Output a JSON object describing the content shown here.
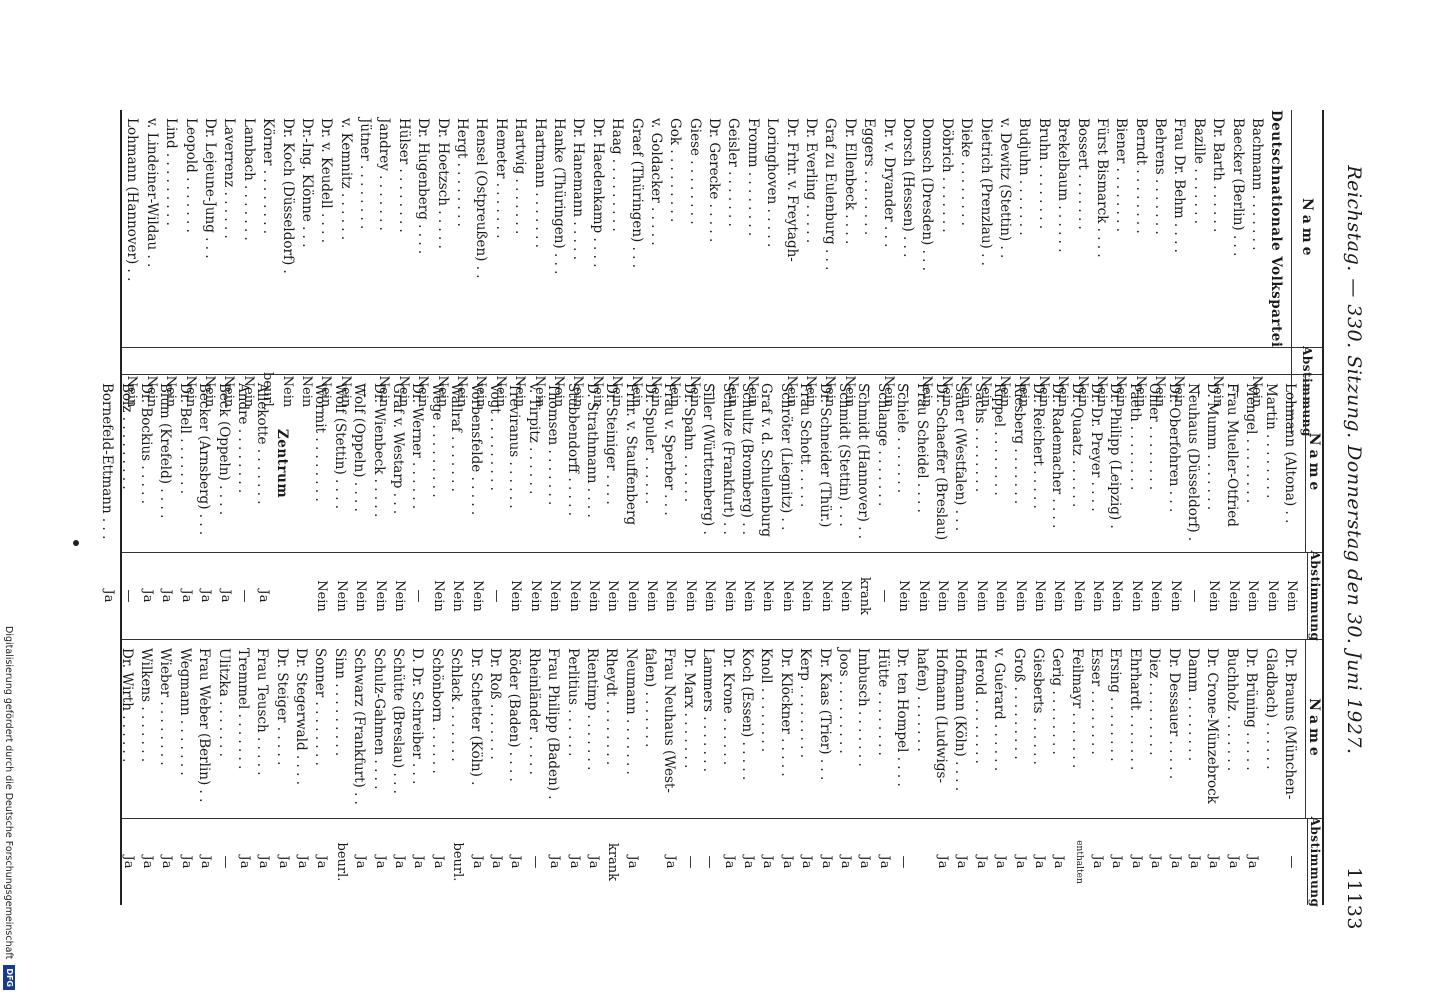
{
  "header": {
    "text": "Reichstag. — 330. Sitzung. Donnerstag den 30. Juni 1927.",
    "page_number": "11133"
  },
  "table": {
    "name_header": "Name",
    "vote_header": "Abstimmung",
    "columns": [
      {
        "rows": [
          {
            "name": "Deutschnationale Volkspartei",
            "vote": "",
            "party": true
          },
          {
            "name": "Bachmann . . . . . . .",
            "vote": "Nein"
          },
          {
            "name": "Baecker (Berlin) . . .",
            "vote": "—"
          },
          {
            "name": "Dr. Barth . . . . . .",
            "vote": "Nein"
          },
          {
            "name": "Bazille . . . . . . .",
            "vote": "—"
          },
          {
            "name": "Frau Dr. Behm . . . .",
            "vote": "Nein"
          },
          {
            "name": "Behrens . . . . . . .",
            "vote": "Nein"
          },
          {
            "name": "Berndt . . . . . . . .",
            "vote": "Nein"
          },
          {
            "name": "Biener . . . . . . . .",
            "vote": "Nein"
          },
          {
            "name": "Fürst Bismarck . . . .",
            "vote": "Nein"
          },
          {
            "name": "Bossert . . . . . . .",
            "vote": "Nein"
          },
          {
            "name": "Brekelbaum . . . . . .",
            "vote": "Nein"
          },
          {
            "name": "Bruhn . . . . . . . .",
            "vote": "Nein"
          },
          {
            "name": "Budjuhn . . . . . . .",
            "vote": "Nein"
          },
          {
            "name": "v. Dewitz (Stettin) . .",
            "vote": "Nein"
          },
          {
            "name": "Dietrich (Prenzlau) . .",
            "vote": "Nein"
          },
          {
            "name": "Dieke . . . . . . . .",
            "vote": "Nein"
          },
          {
            "name": "Döbrich . . . . . . .",
            "vote": "Nein"
          },
          {
            "name": "Domsch (Dresden) . . .",
            "vote": "Nein"
          },
          {
            "name": "Dorsch (Hessen) . . .",
            "vote": "—"
          },
          {
            "name": "Dr. v. Dryander . . .",
            "vote": "Nein"
          },
          {
            "name": "Eggers . . . . . . . .",
            "vote": "—"
          },
          {
            "name": "Dr. Ellenbeck . . . .",
            "vote": "Nein"
          },
          {
            "name": "Graf zu Eulenburg . . .",
            "vote": "Nein"
          },
          {
            "name": "Dr. Everling . . . . .",
            "vote": "Nein"
          },
          {
            "name": "Dr. Frhr. v. Freytagh-",
            "vote": "Nein"
          },
          {
            "name": "Loringhoven . . . . .",
            "vote": ""
          },
          {
            "name": "Fromm . . . . . . . .",
            "vote": "Nein"
          },
          {
            "name": "Geisler . . . . . . .",
            "vote": "Nein"
          },
          {
            "name": "Dr. Gerecke . . . . .",
            "vote": "—"
          },
          {
            "name": "Giese . . . . . . . .",
            "vote": "Nein"
          },
          {
            "name": "Gok . . . . . . . . .",
            "vote": "Nein"
          },
          {
            "name": "v. Goldacker . . . . .",
            "vote": "Nein"
          },
          {
            "name": "Graef (Thüringen) . . .",
            "vote": "Nein"
          },
          {
            "name": "Haag . . . . . . . . .",
            "vote": "Nein"
          },
          {
            "name": "Dr. Haedenkamp . . . .",
            "vote": "Nein"
          },
          {
            "name": "Dr. Hanemann . . . . .",
            "vote": "Nein"
          },
          {
            "name": "Hanke (Thüringen) . . .",
            "vote": "Nein"
          },
          {
            "name": "Hartmann . . . . . . .",
            "vote": "Nein"
          },
          {
            "name": "Hartwig . . . . . . .",
            "vote": "Nein"
          },
          {
            "name": "Hemeter . . . . . . .",
            "vote": "Nein"
          },
          {
            "name": "Hensel (Ostpreußen) . .",
            "vote": "Nein"
          },
          {
            "name": "Hergt . . . . . . . .",
            "vote": "Nein"
          },
          {
            "name": "Dr. Hoetzsch . . . . .",
            "vote": "Nein"
          },
          {
            "name": "Dr. Hugenberg . . . .",
            "vote": "Nein"
          },
          {
            "name": "Hülser . . . . . . . .",
            "vote": "Nein"
          },
          {
            "name": "Jandrey . . . . . . .",
            "vote": "Nein"
          },
          {
            "name": "Jütner . . . . . . . .",
            "vote": "—"
          },
          {
            "name": "v. Kemnitz . . . . . .",
            "vote": "Nein"
          },
          {
            "name": "Dr. v. Keudell . . . .",
            "vote": "Nein"
          },
          {
            "name": "Dr.-Ing. Klönne . . .",
            "vote": "Nein"
          },
          {
            "name": "Dr. Koch (Düsseldorf) .",
            "vote": "Nein"
          },
          {
            "name": "Körner . . . . . . . .",
            "vote": "beurl."
          },
          {
            "name": "Lambach . . . . . . .",
            "vote": "Nein"
          },
          {
            "name": "Laverrenz . . . . . .",
            "vote": "Nein"
          },
          {
            "name": "Dr. Lejeune-Jung . . .",
            "vote": "Nein"
          },
          {
            "name": "Leopold . . . . . . .",
            "vote": "Nein"
          },
          {
            "name": "Lind . . . . . . . . .",
            "vote": "Nein"
          },
          {
            "name": "v. Lindeiner-Wildau . .",
            "vote": "Nein"
          },
          {
            "name": "Lohmann (Hannover) . .",
            "vote": "Nein"
          }
        ]
      },
      {
        "rows": [
          {
            "name": "Lohmann (Altona) . .",
            "vote": "Nein"
          },
          {
            "name": "Martin . . . . . . . .",
            "vote": "Nein"
          },
          {
            "name": "Mengel . . . . . . . .",
            "vote": "Nein"
          },
          {
            "name": "Frau Mueller-Otfried",
            "vote": "Nein"
          },
          {
            "name": "D. Mumm . . . . . . .",
            "vote": "Nein"
          },
          {
            "name": "Neuhaus (Düsseldorf) .",
            "vote": "—"
          },
          {
            "name": "Dr. Oberfohren . . .",
            "vote": "Nein"
          },
          {
            "name": "Ohler . . . . . . . .",
            "vote": "Nein"
          },
          {
            "name": "Paeth . . . . . . . .",
            "vote": "Nein"
          },
          {
            "name": "Dr. Philipp (Leipzig) .",
            "vote": "Nein"
          },
          {
            "name": "Dr. Dr. Preyer . . . .",
            "vote": "Nein"
          },
          {
            "name": "Dr. Quaatz . . . . . .",
            "vote": "Nein"
          },
          {
            "name": "Dr. Rademacher . . . .",
            "vote": "Nein"
          },
          {
            "name": "Dr. Reichert . . . . .",
            "vote": "Nein"
          },
          {
            "name": "Riesberg . . . . . . .",
            "vote": "Nein"
          },
          {
            "name": "Rippel . . . . . . . .",
            "vote": "Nein"
          },
          {
            "name": "Sachs . . . . . . . .",
            "vote": "Nein"
          },
          {
            "name": "Sauer (Westfalen) . . .",
            "vote": "Nein"
          },
          {
            "name": "Dr. Schaeffer (Breslau)",
            "vote": "Nein"
          },
          {
            "name": "Frau Scheidel . . . .",
            "vote": "Nein"
          },
          {
            "name": "Schiele . . . . . . .",
            "vote": "Nein"
          },
          {
            "name": "Schlange . . . . . . .",
            "vote": "—"
          },
          {
            "name": "Schmidt (Hannover) . .",
            "vote": "krank"
          },
          {
            "name": "Schmidt (Stettin) . . .",
            "vote": "Nein"
          },
          {
            "name": "Dr. Schneider (Thür.)",
            "vote": "Nein"
          },
          {
            "name": "Frau Schott . . . . .",
            "vote": "Nein"
          },
          {
            "name": "Schröter (Liegnitz) . .",
            "vote": "Nein"
          },
          {
            "name": "Graf v. d. Schulenburg",
            "vote": "Nein"
          },
          {
            "name": "Schultz (Bromberg) . .",
            "vote": "Nein"
          },
          {
            "name": "Schulze (Frankfurt) . .",
            "vote": "Nein"
          },
          {
            "name": "Siller (Württemberg) .",
            "vote": "Nein"
          },
          {
            "name": "Dr. Spahn . . . . . .",
            "vote": "Nein"
          },
          {
            "name": "Frau v. Sperber . . .",
            "vote": "Nein"
          },
          {
            "name": "Dr. Spuler . . . . . .",
            "vote": "Nein"
          },
          {
            "name": "Frhr. v. Stauffenberg",
            "vote": "Nein"
          },
          {
            "name": "Dr. Steiniger . . . .",
            "vote": "Nein"
          },
          {
            "name": "D. Strathmann . . . .",
            "vote": "Nein"
          },
          {
            "name": "Stubbendorff . . . . .",
            "vote": "Nein"
          },
          {
            "name": "Thomsen . . . . . . .",
            "vote": "Nein"
          },
          {
            "name": "v. Tirpitz . . . . . .",
            "vote": "Nein"
          },
          {
            "name": "Treviranus . . . . . .",
            "vote": "Nein"
          },
          {
            "name": "Vogt . . . . . . . . .",
            "vote": "—"
          },
          {
            "name": "Vorbensfelde . . . . .",
            "vote": "Nein"
          },
          {
            "name": "Wallraf . . . . . . .",
            "vote": "Nein"
          },
          {
            "name": "Wege . . . . . . . . .",
            "vote": "Nein"
          },
          {
            "name": "Dr. Werner . . . . . .",
            "vote": "—"
          },
          {
            "name": "Graf v. Westarp . . .",
            "vote": "Nein"
          },
          {
            "name": "Dr. Wienbeck . . . . .",
            "vote": "Nein"
          },
          {
            "name": "Wolf (Oppeln) . . . .",
            "vote": "Nein"
          },
          {
            "name": "Wolf (Stettin) . . . .",
            "vote": "Nein"
          },
          {
            "name": "Wormit . . . . . . . .",
            "vote": "Nein"
          },
          {
            "name": "",
            "vote": ""
          },
          {
            "name": "Zentrum",
            "vote": "",
            "party": true
          },
          {
            "name": "Allekotte . . . . . . .",
            "vote": "Ja"
          },
          {
            "name": "Andre . . . . . . . .",
            "vote": "—"
          },
          {
            "name": "Beck (Oppeln) . . . .",
            "vote": "Ja"
          },
          {
            "name": "Becker (Arnsberg) . . .",
            "vote": "Ja"
          },
          {
            "name": "Dr. Bell . . . . . . .",
            "vote": "Ja"
          },
          {
            "name": "Blum (Krefeld) . . . .",
            "vote": "Ja"
          },
          {
            "name": "Dr. Bockius . . . . .",
            "vote": "Ja"
          },
          {
            "name": "Bolz . . . . . . . . .",
            "vote": "—"
          },
          {
            "name": "Bornefeld-Ettmann . . .",
            "vote": "Ja"
          }
        ]
      },
      {
        "rows": [
          {
            "name": "Dr. Brauns (München-",
            "vote": "—"
          },
          {
            "name": "Gladbach) . . . . . .",
            "vote": ""
          },
          {
            "name": "Dr. Brüning . . . . .",
            "vote": "Ja"
          },
          {
            "name": "Buchholz . . . . . . .",
            "vote": "Ja"
          },
          {
            "name": "Dr. Crone-Münzebrock",
            "vote": "Ja"
          },
          {
            "name": "Damm . . . . . . . .",
            "vote": "Ja"
          },
          {
            "name": "Dr. Dessauer . . . . .",
            "vote": "Ja"
          },
          {
            "name": "Diez . . . . . . . . .",
            "vote": "Ja"
          },
          {
            "name": "Ehrhardt . . . . . . .",
            "vote": "Ja"
          },
          {
            "name": "Ersing . . . . . . . .",
            "vote": "Ja"
          },
          {
            "name": "Esser . . . . . . . .",
            "vote": "Ja"
          },
          {
            "name": "Feilmayr . . . . . . .",
            "vote": "enthalten",
            "small": true
          },
          {
            "name": "Gerig . . . . . . . .",
            "vote": "Ja"
          },
          {
            "name": "Giesberts . . . . . .",
            "vote": "Ja"
          },
          {
            "name": "Groß . . . . . . . . .",
            "vote": "Ja"
          },
          {
            "name": "v. Guérard . . . . . .",
            "vote": "Ja"
          },
          {
            "name": "Herold . . . . . . . .",
            "vote": "Ja"
          },
          {
            "name": "Hofmann (Köln) . . . .",
            "vote": "Ja"
          },
          {
            "name": "Hofmann (Ludwigs-",
            "vote": "Ja"
          },
          {
            "name": "hafen) . . . . . . .",
            "vote": ""
          },
          {
            "name": "Dr. ten Hompel . . . .",
            "vote": "—"
          },
          {
            "name": "Hütte . . . . . . . .",
            "vote": "Ja"
          },
          {
            "name": "Imbusch . . . . . . .",
            "vote": "Ja"
          },
          {
            "name": "Joos . . . . . . . . .",
            "vote": "Ja"
          },
          {
            "name": "Dr. Kaas (Trier) . . .",
            "vote": "Ja"
          },
          {
            "name": "Kerp . . . . . . . . .",
            "vote": "Ja"
          },
          {
            "name": "Dr. Klöckner . . . . .",
            "vote": "Ja"
          },
          {
            "name": "Knoll . . . . . . . .",
            "vote": "Ja"
          },
          {
            "name": "Koch (Essen) . . . . .",
            "vote": "Ja"
          },
          {
            "name": "Dr. Krone . . . . . .",
            "vote": "Ja"
          },
          {
            "name": "Lammers . . . . . . .",
            "vote": "—"
          },
          {
            "name": "Dr. Marx . . . . . . .",
            "vote": "—"
          },
          {
            "name": "Frau Neuhaus (West-",
            "vote": "Ja"
          },
          {
            "name": "falen) . . . . . . .",
            "vote": ""
          },
          {
            "name": "Neumann . . . . . . .",
            "vote": "Ja"
          },
          {
            "name": "Rheydt . . . . . . . .",
            "vote": "krank"
          },
          {
            "name": "Rientimp . . . . . . .",
            "vote": "Ja"
          },
          {
            "name": "Perlitius . . . . . .",
            "vote": "Ja"
          },
          {
            "name": "Frau Philipp (Baden) .",
            "vote": "Ja"
          },
          {
            "name": "Rheinländer . . . . .",
            "vote": "—"
          },
          {
            "name": "Röder (Baden) . . . .",
            "vote": "Ja"
          },
          {
            "name": "Dr. Roß . . . . . . .",
            "vote": "Ja"
          },
          {
            "name": "Dr. Schetter (Köln) .",
            "vote": "Ja"
          },
          {
            "name": "Schlack . . . . . . .",
            "vote": "beurl."
          },
          {
            "name": "Schönborn . . . . . .",
            "vote": "Ja"
          },
          {
            "name": "D. Dr. Schreiber . . .",
            "vote": "Ja"
          },
          {
            "name": "Schütte (Breslau) . . .",
            "vote": "Ja"
          },
          {
            "name": "Schulz-Gahmen . . . .",
            "vote": "Ja"
          },
          {
            "name": "Schwarz (Frankfurt) . .",
            "vote": "Ja"
          },
          {
            "name": "Sinn . . . . . . . . .",
            "vote": "beurl."
          },
          {
            "name": "Sonner . . . . . . . .",
            "vote": "Ja"
          },
          {
            "name": "Dr. Stegerwald . . . .",
            "vote": "Ja"
          },
          {
            "name": "Dr. Steiger . . . . .",
            "vote": "Ja"
          },
          {
            "name": "Frau Teusch . . . . .",
            "vote": "Ja"
          },
          {
            "name": "Tremmel . . . . . . .",
            "vote": "Ja"
          },
          {
            "name": "Ulitzka . . . . . . .",
            "vote": "—"
          },
          {
            "name": "Frau Weber (Berlin) . .",
            "vote": "Ja"
          },
          {
            "name": "Wegmann . . . . . . .",
            "vote": "Ja"
          },
          {
            "name": "Wieber . . . . . . . .",
            "vote": "Ja"
          },
          {
            "name": "Wilkens . . . . . . .",
            "vote": "Ja"
          },
          {
            "name": "Dr. Wirth . . . . . .",
            "vote": "Ja"
          }
        ]
      }
    ]
  },
  "footer": {
    "text": "Digitalisierung gefördert durch die Deutsche Forschungsgemeinschaft",
    "logo": "DFG"
  }
}
